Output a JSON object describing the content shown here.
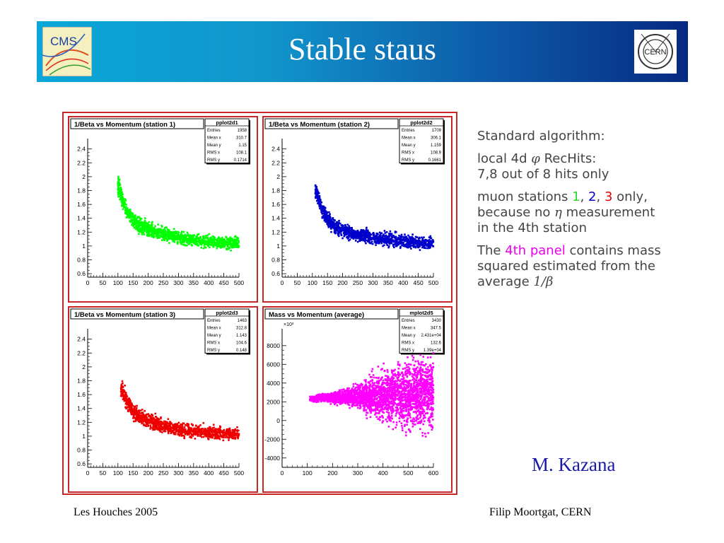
{
  "slide": {
    "title": "Stable staus",
    "logos": {
      "left": "CMS",
      "right": "CERN"
    },
    "author": "M. Kazana",
    "footer_left": "Les Houches 2005",
    "footer_right": "Filip Moortgat, CERN"
  },
  "bullets": {
    "b1": "Standard algorithm:",
    "b2_line1_pre": "local 4d ",
    "b2_phi": "φ",
    "b2_line1_post": " RecHits:",
    "b2_line2": "7,8 out of 8 hits only",
    "b3_pre": "muon stations ",
    "b3_n1": "1",
    "b3_c1": ", ",
    "b3_n2": "2",
    "b3_c2": ", ",
    "b3_n3": "3",
    "b3_post": " only,",
    "b3_line2_pre": "because no ",
    "b3_eta": "η",
    "b3_line2_post": " measurement",
    "b3_line3": "in the 4th station",
    "b4_pre": "The ",
    "b4_hl": "4th panel",
    "b4_post": " contains mass",
    "b4_line2": "squared estimated from the",
    "b4_line3_pre": "average ",
    "b4_line3_math": "1/β"
  },
  "colors": {
    "station1": "#00ff00",
    "station2": "#0000cc",
    "station3": "#ee0000",
    "mass": "#ff00ff",
    "frame": "#c62828",
    "author": "#1a1aa8"
  },
  "chart_data": [
    {
      "type": "scatter",
      "title": "1/Beta vs Momentum (station 1)",
      "stats": {
        "name": "pplot2d1",
        "rows": [
          [
            "Entries",
            "1958"
          ],
          [
            "Mean x",
            "310.7"
          ],
          [
            "Mean y",
            "1.15"
          ],
          [
            "RMS x",
            "108.1"
          ],
          [
            "RMS y",
            "0.1714"
          ]
        ]
      },
      "xlim": [
        0,
        500
      ],
      "ylim": [
        0.55,
        2.55
      ],
      "xticks": [
        0,
        50,
        100,
        150,
        200,
        250,
        300,
        350,
        400,
        450,
        500
      ],
      "yticks": [
        0.6,
        0.8,
        1,
        1.2,
        1.4,
        1.6,
        1.8,
        2,
        2.2,
        2.4
      ],
      "ytick_labels": [
        "0.6",
        "0.8",
        "1",
        "1.2",
        "1.4",
        "1.6",
        "1.8",
        "2",
        "2.2",
        "2.4"
      ],
      "series_color": "#00ff00",
      "x": [
        100,
        110,
        120,
        130,
        140,
        150,
        170,
        200,
        250,
        300,
        350,
        400,
        450,
        500
      ],
      "y": [
        1.88,
        1.75,
        1.6,
        1.5,
        1.42,
        1.36,
        1.3,
        1.24,
        1.17,
        1.12,
        1.09,
        1.07,
        1.05,
        1.04
      ]
    },
    {
      "type": "scatter",
      "title": "1/Beta vs Momentum (station 2)",
      "stats": {
        "name": "pplot2d2",
        "rows": [
          [
            "Entries",
            "1709"
          ],
          [
            "Mean x",
            "306.1"
          ],
          [
            "Mean y",
            "1.159"
          ],
          [
            "RMS x",
            "108.9"
          ],
          [
            "RMS y",
            "0.1661"
          ]
        ]
      },
      "xlim": [
        0,
        500
      ],
      "ylim": [
        0.55,
        2.55
      ],
      "xticks": [
        0,
        50,
        100,
        150,
        200,
        250,
        300,
        350,
        400,
        450,
        500
      ],
      "yticks": [
        0.6,
        0.8,
        1,
        1.2,
        1.4,
        1.6,
        1.8,
        2,
        2.2,
        2.4
      ],
      "ytick_labels": [
        "0.6",
        "0.8",
        "1",
        "1.2",
        "1.4",
        "1.6",
        "1.8",
        "2",
        "2.2",
        "2.4"
      ],
      "series_color": "#0000cc",
      "x": [
        110,
        120,
        130,
        140,
        150,
        170,
        200,
        250,
        300,
        350,
        400,
        450,
        500
      ],
      "y": [
        1.82,
        1.68,
        1.55,
        1.46,
        1.38,
        1.3,
        1.23,
        1.16,
        1.12,
        1.09,
        1.07,
        1.05,
        1.04
      ]
    },
    {
      "type": "scatter",
      "title": "1/Beta vs Momentum (station 3)",
      "stats": {
        "name": "pplot2d3",
        "rows": [
          [
            "Entries",
            "1463"
          ],
          [
            "Mean x",
            "312.8"
          ],
          [
            "Mean y",
            "1.143"
          ],
          [
            "RMS x",
            "104.6"
          ],
          [
            "RMS y",
            "0.148"
          ]
        ]
      },
      "xlim": [
        0,
        500
      ],
      "ylim": [
        0.55,
        2.55
      ],
      "xticks": [
        0,
        50,
        100,
        150,
        200,
        250,
        300,
        350,
        400,
        450,
        500
      ],
      "yticks": [
        0.6,
        0.8,
        1,
        1.2,
        1.4,
        1.6,
        1.8,
        2,
        2.2,
        2.4
      ],
      "ytick_labels": [
        "0.6",
        "0.8",
        "1",
        "1.2",
        "1.4",
        "1.6",
        "1.8",
        "2",
        "2.2",
        "2.4"
      ],
      "series_color": "#ee0000",
      "x": [
        110,
        120,
        130,
        140,
        150,
        170,
        200,
        250,
        300,
        350,
        400,
        450,
        500
      ],
      "y": [
        1.7,
        1.6,
        1.5,
        1.42,
        1.36,
        1.29,
        1.22,
        1.15,
        1.1,
        1.07,
        1.05,
        1.04,
        1.03
      ]
    },
    {
      "type": "scatter",
      "title": "Mass vs Momentum (average)",
      "stats": {
        "name": "mplot2d5",
        "rows": [
          [
            "Entries",
            "3430"
          ],
          [
            "Mean x",
            "347.5"
          ],
          [
            "Mean y",
            "2.431e+04"
          ],
          [
            "RMS x",
            "132.6"
          ],
          [
            "RMS y",
            "1.39e+04"
          ]
        ]
      },
      "exponent_label": "×10³",
      "xlim": [
        0,
        600
      ],
      "ylim": [
        -5000,
        9800
      ],
      "xticks": [
        0,
        100,
        200,
        300,
        400,
        500,
        600
      ],
      "yticks": [
        -4000,
        -2000,
        0,
        2000,
        4000,
        6000,
        8000
      ],
      "ytick_labels": [
        "-4000",
        "-2000",
        "0",
        "2000",
        "4000",
        "6000",
        "8000"
      ],
      "series_color": "#ff00ff",
      "x": [
        100,
        150,
        200,
        250,
        300,
        350,
        400,
        450,
        500,
        550,
        600
      ],
      "y_center": [
        2300,
        2400,
        2400,
        2500,
        2600,
        2700,
        2700,
        2800,
        2800,
        2900,
        2900
      ],
      "y_spread": [
        300,
        500,
        700,
        1000,
        1600,
        2400,
        3200,
        3800,
        4400,
        4800,
        5200
      ]
    }
  ]
}
